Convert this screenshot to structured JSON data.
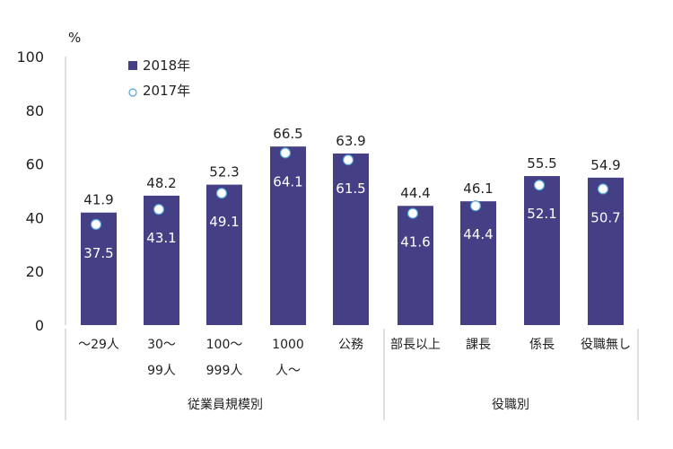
{
  "chart_data": {
    "type": "bar",
    "unit_label": "%",
    "ylim": [
      0,
      100
    ],
    "yticks": [
      "0",
      "20",
      "40",
      "60",
      "80",
      "100"
    ],
    "categories": [
      [
        "～29人"
      ],
      [
        "30～",
        "99人"
      ],
      [
        "100～",
        "999人"
      ],
      [
        "1000",
        "人～"
      ],
      [
        "公務"
      ],
      [
        "部長以上"
      ],
      [
        "課長"
      ],
      [
        "係長"
      ],
      [
        "役職無し"
      ]
    ],
    "groups": [
      {
        "label": "従業員規模別",
        "start": 0,
        "end": 4
      },
      {
        "label": "役職別",
        "start": 5,
        "end": 8
      }
    ],
    "series": [
      {
        "name": "2018年",
        "kind": "bar",
        "color": "#453f85",
        "values": [
          41.9,
          48.2,
          52.3,
          66.5,
          63.9,
          44.4,
          46.1,
          55.5,
          54.9
        ],
        "labels": [
          "41.9",
          "48.2",
          "52.3",
          "66.5",
          "63.9",
          "44.4",
          "46.1",
          "55.5",
          "54.9"
        ]
      },
      {
        "name": "2017年",
        "kind": "marker",
        "color": "#ffffff",
        "stroke": "#4fa3d9",
        "values": [
          37.5,
          43.1,
          49.1,
          64.1,
          61.5,
          41.6,
          44.4,
          52.1,
          50.7
        ],
        "labels": [
          "37.5",
          "43.1",
          "49.1",
          "64.1",
          "61.5",
          "41.6",
          "44.4",
          "52.1",
          "50.7"
        ]
      }
    ],
    "legend_position": "top-left"
  }
}
